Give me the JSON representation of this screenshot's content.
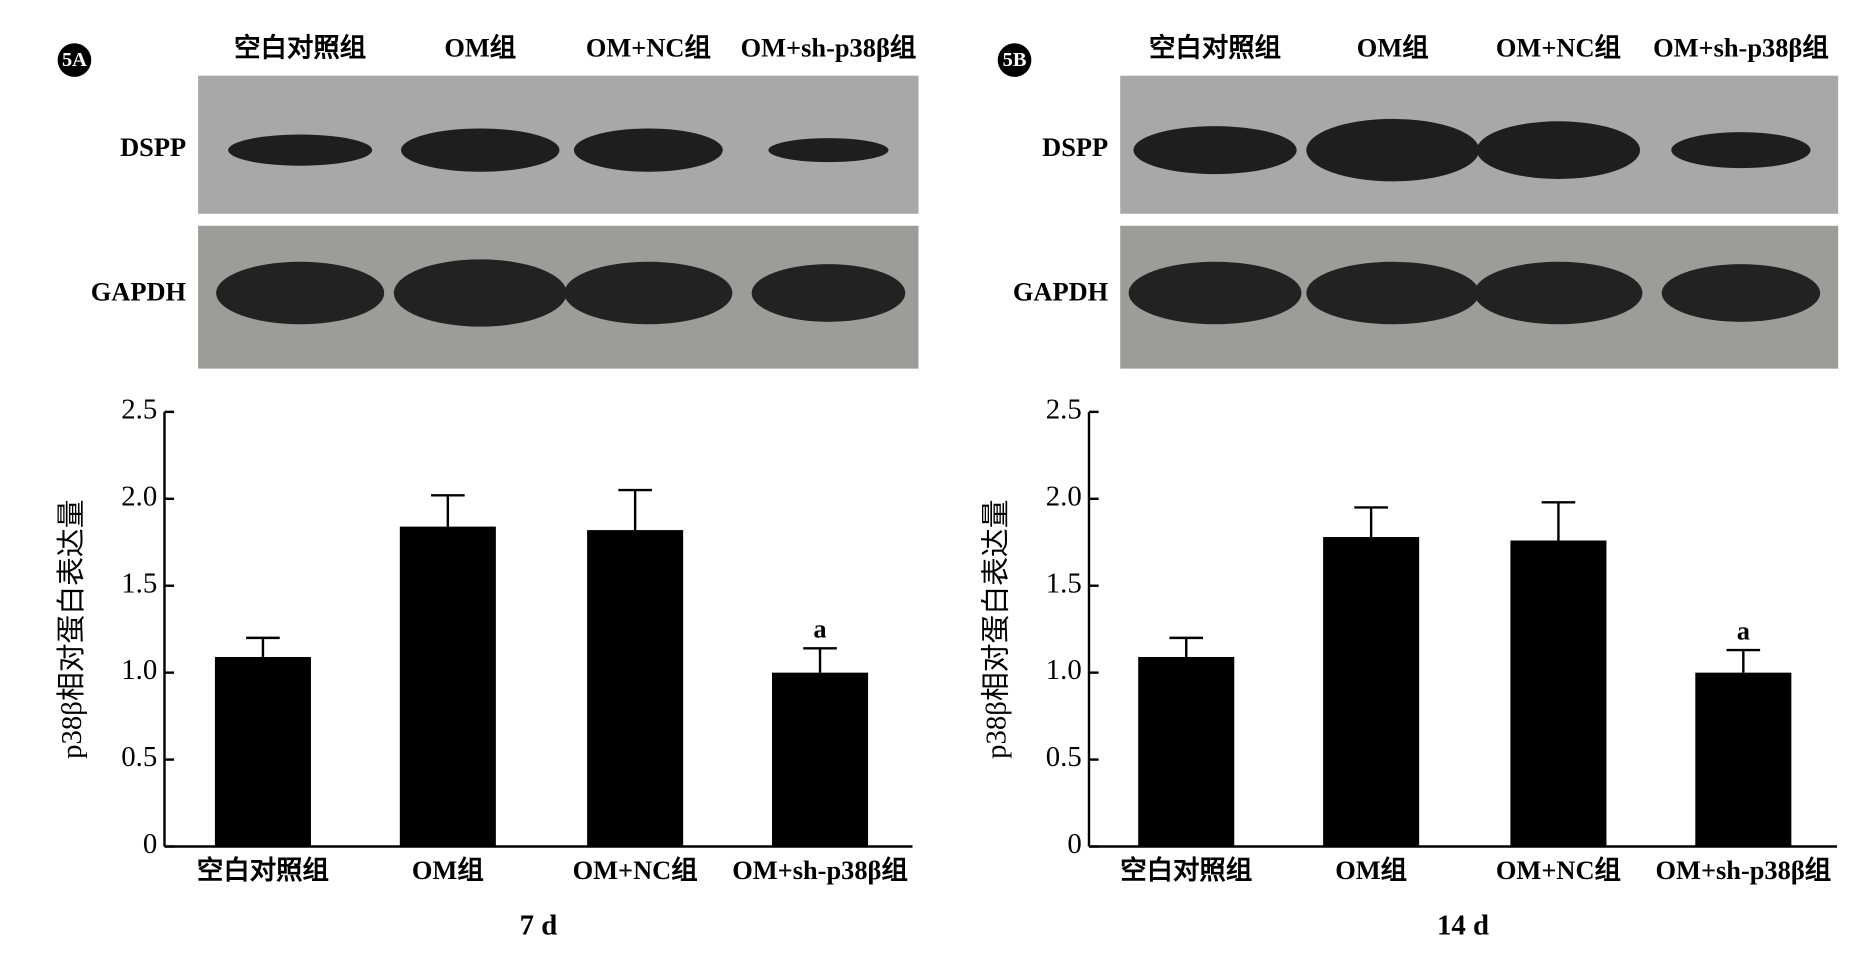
{
  "chart_data": [
    {
      "type": "bar",
      "panel_label": "5A",
      "blot_lanes": [
        "空白对照组",
        "OM组",
        "OM+NC组",
        "OM+sh-p38β组"
      ],
      "blot_rows": [
        "DSPP",
        "GAPDH"
      ],
      "y_label": "p38β相对蛋白表达量",
      "x_label": "7 d",
      "categories": [
        "空白对照组",
        "OM组",
        "OM+NC组",
        "OM+sh-p38β组"
      ],
      "values": [
        1.09,
        1.84,
        1.82,
        1.0
      ],
      "errors": [
        0.11,
        0.18,
        0.23,
        0.14
      ],
      "color": "#000000",
      "annotations": [
        {
          "text": "a",
          "x": "OM+sh-p38β组"
        }
      ],
      "ylim": [
        0,
        2.5
      ],
      "yticks": [
        0,
        0.5,
        {
          "value": 1,
          "label": "1.0"
        },
        1.5,
        {
          "value": 2,
          "label": "2.0"
        },
        2.5
      ]
    },
    {
      "type": "bar",
      "panel_label": "5B",
      "blot_lanes": [
        "空白对照组",
        "OM组",
        "OM+NC组",
        "OM+sh-p38β组"
      ],
      "blot_rows": [
        "DSPP",
        "GAPDH"
      ],
      "y_label": "p38β相对蛋白表达量",
      "x_label": "14 d",
      "categories": [
        "空白对照组",
        "OM组",
        "OM+NC组",
        "OM+sh-p38β组"
      ],
      "values": [
        1.09,
        1.78,
        1.76,
        1.0
      ],
      "errors": [
        0.11,
        0.17,
        0.22,
        0.13
      ],
      "color": "#000000",
      "annotations": [
        {
          "text": "a",
          "x": "OM+sh-p38β组"
        }
      ],
      "ylim": [
        0,
        2.5
      ],
      "yticks": [
        0,
        0.5,
        {
          "value": 1,
          "label": "1.0"
        },
        1.5,
        {
          "value": 2,
          "label": "2.0"
        },
        2.5
      ]
    }
  ]
}
